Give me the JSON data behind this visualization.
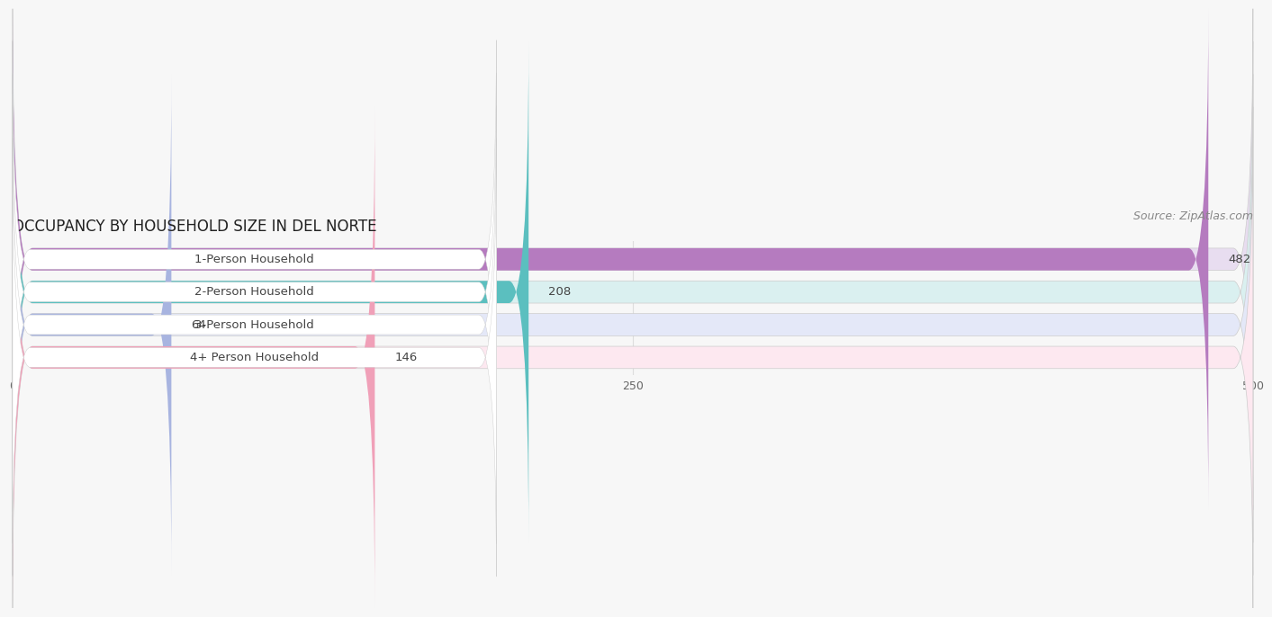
{
  "title": "OCCUPANCY BY HOUSEHOLD SIZE IN DEL NORTE",
  "source": "Source: ZipAtlas.com",
  "categories": [
    "1-Person Household",
    "2-Person Household",
    "3-Person Household",
    "4+ Person Household"
  ],
  "values": [
    482,
    208,
    64,
    146
  ],
  "bar_colors": [
    "#b57bbf",
    "#5bbfbf",
    "#a8b4e0",
    "#f0a0b8"
  ],
  "bar_bg_colors": [
    "#e8ddf0",
    "#daf0f0",
    "#e4e8f8",
    "#fde8f0"
  ],
  "label_bg_color": "#ffffff",
  "xlim": [
    0,
    500
  ],
  "xticks": [
    0,
    250,
    500
  ],
  "title_fontsize": 12,
  "source_fontsize": 9,
  "label_fontsize": 9.5,
  "value_fontsize": 9.5,
  "background_color": "#f7f7f7",
  "grid_color": "#dddddd"
}
